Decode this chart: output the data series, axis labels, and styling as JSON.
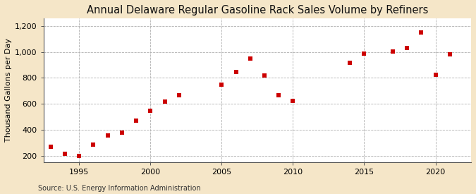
{
  "title": "Annual Delaware Regular Gasoline Rack Sales Volume by Refiners",
  "ylabel": "Thousand Gallons per Day",
  "source": "Source: U.S. Energy Information Administration",
  "background_color": "#f5e6c8",
  "plot_background_color": "#ffffff",
  "marker_color": "#cc0000",
  "data_points": [
    [
      1993,
      270
    ],
    [
      1994,
      215
    ],
    [
      1995,
      200
    ],
    [
      1996,
      285
    ],
    [
      1997,
      355
    ],
    [
      1998,
      380
    ],
    [
      1999,
      470
    ],
    [
      2000,
      545
    ],
    [
      2001,
      615
    ],
    [
      2002,
      665
    ],
    [
      2005,
      745
    ],
    [
      2006,
      845
    ],
    [
      2007,
      950
    ],
    [
      2008,
      820
    ],
    [
      2009,
      665
    ],
    [
      2010,
      625
    ],
    [
      2014,
      915
    ],
    [
      2015,
      985
    ],
    [
      2017,
      1005
    ],
    [
      2018,
      1030
    ],
    [
      2019,
      1150
    ],
    [
      2020,
      825
    ],
    [
      2021,
      980
    ]
  ],
  "xlim": [
    1992.5,
    2022.5
  ],
  "ylim": [
    150,
    1260
  ],
  "yticks": [
    200,
    400,
    600,
    800,
    1000,
    1200
  ],
  "ytick_labels": [
    "200",
    "400",
    "600",
    "800",
    "1,000",
    "1,200"
  ],
  "xticks": [
    1995,
    2000,
    2005,
    2010,
    2015,
    2020
  ],
  "title_fontsize": 10.5,
  "ylabel_fontsize": 8,
  "tick_fontsize": 8,
  "source_fontsize": 7
}
